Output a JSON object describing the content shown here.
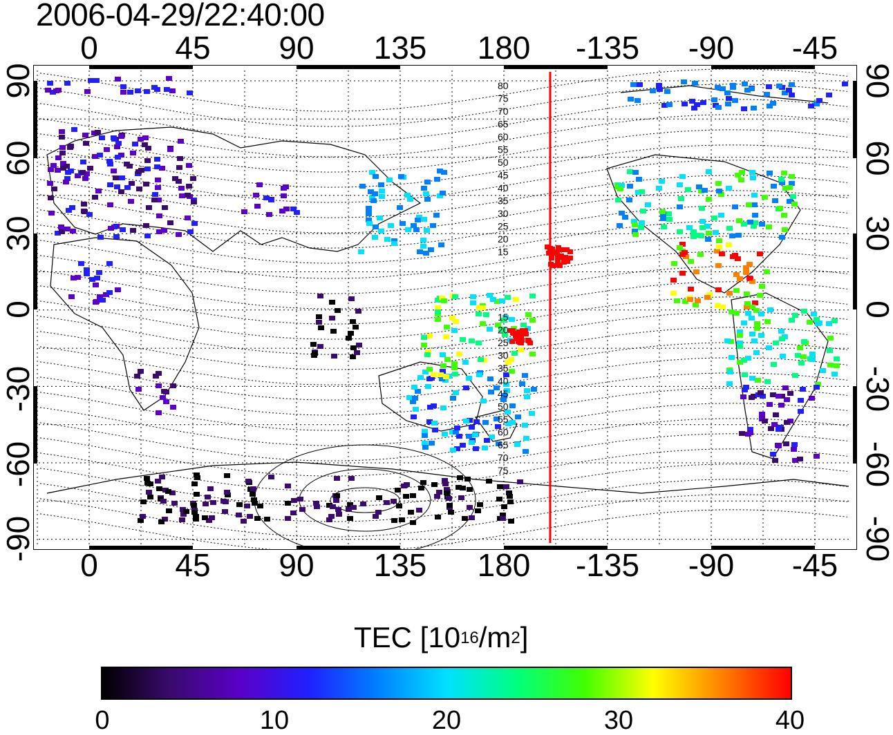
{
  "header": {
    "title": "2006-04-29/22:40:00"
  },
  "axes": {
    "lon_ticks": [
      "0",
      "45",
      "90",
      "135",
      "180",
      "-135",
      "-90",
      "-45"
    ],
    "lat_ticks": [
      "90",
      "60",
      "30",
      "0",
      "-30",
      "-60",
      "-90"
    ]
  },
  "contours": {
    "north_labels": [
      "80",
      "75",
      "70",
      "65",
      "60",
      "55",
      "50",
      "45",
      "40",
      "35",
      "30",
      "25",
      "20",
      "15"
    ],
    "south_labels": [
      "15",
      "20",
      "25",
      "30",
      "35",
      "40",
      "45",
      "50",
      "55",
      "60",
      "65",
      "70",
      "75"
    ]
  },
  "colorbar": {
    "label_main": "TEC  [10",
    "label_exp": "16",
    "label_unit": "/m",
    "label_exp2": "2",
    "label_end": "]",
    "ticks": [
      "0",
      "10",
      "20",
      "30",
      "40"
    ],
    "colors": [
      "#000000",
      "#3a0a6e",
      "#5a00c8",
      "#2020ff",
      "#0080ff",
      "#00e0ff",
      "#00ff80",
      "#40ff00",
      "#ffff00",
      "#ff8000",
      "#ff0000"
    ]
  },
  "colors": {
    "terminator_line": "#ff0000"
  }
}
